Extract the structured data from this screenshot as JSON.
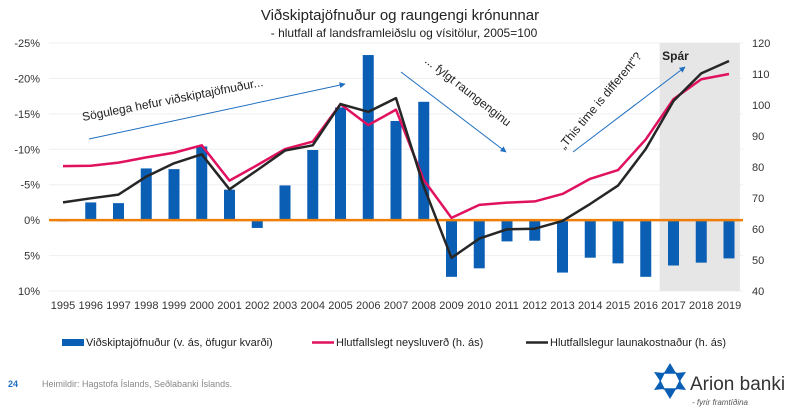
{
  "chart_data": {
    "type": "bar+line",
    "title": "Viðskiptajöfnuður og raungengi krónunnar",
    "subtitle": "- hlutfall af landsframleiðslu og vísitölur, 2005=100",
    "categories": [
      "1995",
      "1996",
      "1997",
      "1998",
      "1999",
      "2000",
      "2001",
      "2002",
      "2003",
      "2004",
      "2005",
      "2006",
      "2007",
      "2008",
      "2009",
      "2010",
      "2011",
      "2012",
      "2013",
      "2014",
      "2015",
      "2016",
      "2017",
      "2018",
      "2019"
    ],
    "left_axis": {
      "ylim": [
        -25,
        10
      ],
      "reversed": true,
      "ticks": [
        "-25%",
        "-20%",
        "-15%",
        "-10%",
        "-5%",
        "0%",
        "5%",
        "10%"
      ]
    },
    "right_axis": {
      "ylim": [
        40,
        120
      ],
      "ticks": [
        "120",
        "110",
        "100",
        "90",
        "80",
        "70",
        "60",
        "50",
        "40"
      ]
    },
    "grid": true,
    "forecast_years": [
      "2017",
      "2018",
      "2019"
    ],
    "forecast_label": "Spár",
    "series": [
      {
        "name": "Viðskiptajöfnuður (v. ás, öfugur kvarði)",
        "type": "bar",
        "axis": "left",
        "color": "#0a5fb4",
        "values": [
          0.2,
          -2.5,
          -2.4,
          -7.3,
          -7.2,
          -10.4,
          -4.3,
          1.1,
          -4.9,
          -9.9,
          -15.9,
          -23.3,
          -14.0,
          -16.7,
          8.0,
          6.8,
          3.0,
          2.9,
          7.4,
          5.3,
          6.1,
          8.0,
          6.4,
          6.0,
          5.4
        ]
      },
      {
        "name": "Hlutfallslegt neysluverð (h. ás)",
        "type": "line",
        "axis": "right",
        "color": "#e0115f",
        "values": [
          80.3,
          80.4,
          81.4,
          83.1,
          84.6,
          87.0,
          75.6,
          80.6,
          85.8,
          88.2,
          100.3,
          93.5,
          98.5,
          75.8,
          63.6,
          67.8,
          68.5,
          68.9,
          71.3,
          76.2,
          79.0,
          88.9,
          101.9,
          108.3,
          110.0
        ]
      },
      {
        "name": "Hlutfallslegur launakostnaður (h. ás)",
        "type": "line",
        "axis": "right",
        "color": "#262626",
        "values": [
          68.6,
          69.9,
          71.1,
          76.9,
          81.2,
          84.1,
          72.8,
          79.0,
          85.3,
          87.0,
          100.3,
          97.8,
          102.2,
          73.7,
          50.7,
          56.9,
          59.9,
          60.1,
          62.6,
          68.1,
          74.0,
          85.8,
          101.3,
          110.2,
          114.2
        ]
      }
    ],
    "zero_line_color": "#f07f09",
    "annotations": [
      "Sögulega hefur viðskiptajöfnuður...",
      "... fylgt raungenginu",
      "„This time is different\"?"
    ],
    "legend_position": "bottom"
  },
  "footer": {
    "page_number": "24",
    "source": "Heimildir: Hagstofa Íslands, Seðlabanki Íslands.",
    "logo_text": "Arion banki",
    "logo_tagline": "- fyrir framtíðina"
  }
}
